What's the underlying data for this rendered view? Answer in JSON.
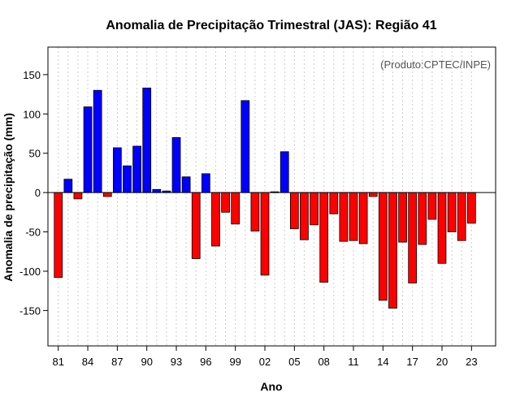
{
  "chart_data": {
    "type": "bar",
    "title": "Anomalia de Precipitação Trimestral (JAS): Região 41",
    "xlabel": "Ano",
    "ylabel": "Anomalia de precipitação (mm)",
    "credit": "(Produto:CPTEC/INPE)",
    "ylim": [
      -195,
      185
    ],
    "y_ticks": [
      -150,
      -100,
      -50,
      0,
      50,
      100,
      150
    ],
    "x_tick_labels": [
      "81",
      "84",
      "87",
      "90",
      "93",
      "96",
      "99",
      "02",
      "05",
      "08",
      "11",
      "14",
      "17",
      "20",
      "23"
    ],
    "x_tick_every": 3,
    "grid": true,
    "colors": {
      "positive": "#0000ff",
      "negative": "#ff0000",
      "edge": "#000000",
      "grid": "#cccccc"
    },
    "categories": [
      "1981",
      "1982",
      "1983",
      "1984",
      "1985",
      "1986",
      "1987",
      "1988",
      "1989",
      "1990",
      "1991",
      "1992",
      "1993",
      "1994",
      "1995",
      "1996",
      "1997",
      "1998",
      "1999",
      "2000",
      "2001",
      "2002",
      "2003",
      "2004",
      "2005",
      "2006",
      "2007",
      "2008",
      "2009",
      "2010",
      "2011",
      "2012",
      "2013",
      "2014",
      "2015",
      "2016",
      "2017",
      "2018",
      "2019",
      "2020",
      "2021",
      "2022",
      "2023"
    ],
    "values": [
      -108,
      17,
      -8,
      109,
      130,
      -5,
      57,
      34,
      59,
      133,
      4,
      2,
      70,
      20,
      -84,
      24,
      -68,
      -25,
      -40,
      117,
      -49,
      -105,
      1,
      52,
      -46,
      -60,
      -41,
      -114,
      -27,
      -62,
      -61,
      -65,
      -5,
      -137,
      -147,
      -63,
      -115,
      -66,
      -34,
      -90,
      -50,
      -61,
      -39
    ]
  }
}
